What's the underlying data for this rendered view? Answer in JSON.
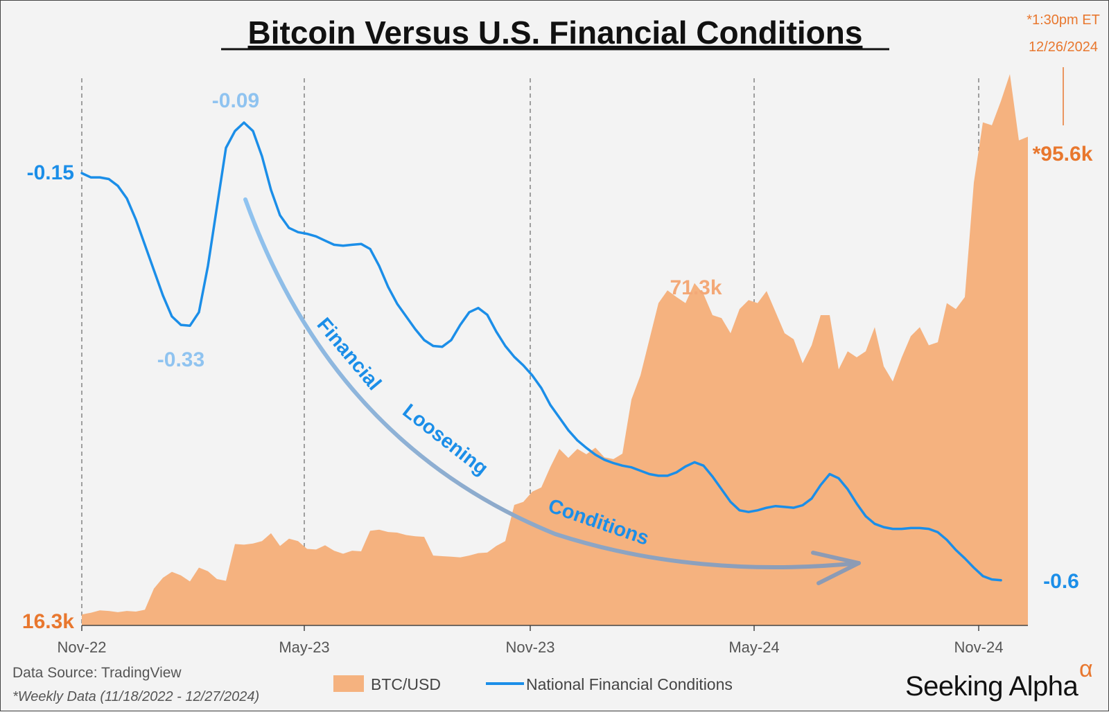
{
  "chart_data": {
    "type": "line+area",
    "title": "Bitcoin Versus U.S. Financial Conditions",
    "x_tick_labels": [
      "Nov-22",
      "May-23",
      "Nov-23",
      "May-24",
      "Nov-24"
    ],
    "series": [
      {
        "name": "BTC/USD",
        "kind": "area",
        "axis": "right",
        "unit": "k",
        "color": "#f5b27f",
        "values": [
          16.3,
          16.6,
          17.0,
          16.9,
          16.7,
          16.9,
          16.8,
          17.1,
          20.6,
          22.4,
          23.4,
          22.8,
          21.8,
          24.1,
          23.5,
          22.2,
          21.9,
          28.0,
          27.9,
          28.1,
          28.5,
          29.8,
          27.7,
          28.9,
          28.5,
          27.2,
          27.1,
          27.8,
          26.9,
          26.4,
          26.9,
          26.8,
          30.2,
          30.4,
          30.0,
          29.9,
          29.5,
          29.3,
          29.2,
          26.1,
          26.0,
          25.9,
          25.8,
          26.1,
          26.5,
          26.6,
          27.7,
          28.5,
          34.5,
          35.0,
          36.7,
          37.4,
          40.8,
          43.8,
          42.3,
          43.8,
          42.9,
          44.0,
          42.4,
          42.1,
          43.0,
          52.0,
          56.0,
          62.0,
          68.0,
          70.1,
          69.0,
          68.0,
          71.3,
          69.5,
          66.0,
          65.5,
          63.0,
          67.0,
          68.5,
          68.0,
          70.0,
          66.5,
          63.0,
          62.0,
          58.0,
          61.0,
          66.0,
          66.0,
          57.0,
          60.0,
          59.0,
          60.0,
          64.0,
          57.5,
          55.0,
          59.0,
          62.5,
          64.0,
          61.0,
          61.5,
          68.0,
          67.0,
          69.0,
          88.0,
          98.0,
          97.5,
          101.5,
          106.0,
          95.0,
          95.6
        ]
      },
      {
        "name": "National Financial Conditions",
        "kind": "line",
        "axis": "left",
        "color": "#1b8ee8",
        "values": [
          -0.15,
          -0.155,
          -0.155,
          -0.157,
          -0.165,
          -0.18,
          -0.205,
          -0.235,
          -0.265,
          -0.295,
          -0.32,
          -0.33,
          -0.331,
          -0.315,
          -0.26,
          -0.19,
          -0.12,
          -0.1,
          -0.09,
          -0.1,
          -0.13,
          -0.17,
          -0.2,
          -0.215,
          -0.22,
          -0.222,
          -0.225,
          -0.23,
          -0.235,
          -0.236,
          -0.235,
          -0.234,
          -0.24,
          -0.26,
          -0.285,
          -0.305,
          -0.32,
          -0.335,
          -0.348,
          -0.355,
          -0.356,
          -0.348,
          -0.33,
          -0.315,
          -0.31,
          -0.318,
          -0.338,
          -0.355,
          -0.368,
          -0.378,
          -0.39,
          -0.405,
          -0.425,
          -0.44,
          -0.455,
          -0.467,
          -0.476,
          -0.484,
          -0.49,
          -0.494,
          -0.497,
          -0.499,
          -0.503,
          -0.507,
          -0.509,
          -0.509,
          -0.505,
          -0.498,
          -0.493,
          -0.497,
          -0.51,
          -0.525,
          -0.54,
          -0.55,
          -0.552,
          -0.55,
          -0.547,
          -0.545,
          -0.546,
          -0.547,
          -0.544,
          -0.536,
          -0.52,
          -0.507,
          -0.512,
          -0.525,
          -0.542,
          -0.557,
          -0.566,
          -0.57,
          -0.572,
          -0.572,
          -0.571,
          -0.571,
          -0.572,
          -0.576,
          -0.585,
          -0.597,
          -0.607,
          -0.618,
          -0.628,
          -0.632,
          -0.633
        ]
      }
    ],
    "annotations": {
      "nfc_start": "-0.15",
      "nfc_peak": "-0.09",
      "nfc_trough": "-0.33",
      "nfc_end": "-0.6",
      "btc_start": "16.3k",
      "btc_mid_peak": "71.3k",
      "btc_end": "*95.6k",
      "asof_time": "*1:30pm ET",
      "asof_date": "12/26/2024",
      "arrow_words": [
        "Financial",
        "Loosening",
        "Conditions"
      ]
    },
    "legend": {
      "placement": "bottom-center",
      "items": [
        "BTC/USD",
        "National Financial Conditions"
      ]
    },
    "vertical_dashed_gridlines": true
  },
  "footer": {
    "source": "Data Source: TradingView",
    "note": "*Weekly Data (11/18/2022 - 12/27/2024)",
    "brand": "Seeking Alpha",
    "brand_mark": "α"
  }
}
